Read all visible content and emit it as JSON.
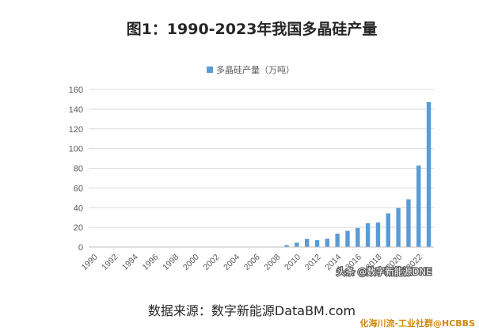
{
  "chart_data": {
    "type": "bar",
    "title": "图1：1990-2023年我国多晶硅产量",
    "series": [
      {
        "name": "多晶硅产量（万吨）",
        "values": [
          0,
          0,
          0,
          0,
          0,
          0,
          0,
          0,
          0,
          0,
          0,
          0,
          0,
          0,
          0,
          0,
          0,
          0,
          0.45,
          2.0,
          4.5,
          8.2,
          7.1,
          8.5,
          13.6,
          16.5,
          19.4,
          24.2,
          25.0,
          34.2,
          39.6,
          48.5,
          82.7,
          147.2
        ]
      }
    ],
    "categories": [
      "1990",
      "1991",
      "1992",
      "1993",
      "1994",
      "1995",
      "1996",
      "1997",
      "1998",
      "1999",
      "2000",
      "2001",
      "2002",
      "2003",
      "2004",
      "2005",
      "2006",
      "2007",
      "2008",
      "2009",
      "2010",
      "2011",
      "2012",
      "2013",
      "2014",
      "2015",
      "2016",
      "2017",
      "2018",
      "2019",
      "2020",
      "2021",
      "2022",
      "2023"
    ],
    "x_tick_labels": [
      "1990",
      "1992",
      "1994",
      "1996",
      "1998",
      "2000",
      "2002",
      "2004",
      "2006",
      "2008",
      "2010",
      "2012",
      "2014",
      "2016",
      "2018",
      "2020",
      "2022"
    ],
    "ylim": [
      0,
      160
    ],
    "y_ticks": [
      0,
      20,
      40,
      60,
      80,
      100,
      120,
      140,
      160
    ],
    "grid": true,
    "legend": "top-center",
    "bar_color": "#5b9bd5"
  },
  "source": "数据来源：数字新能源DataBM.com",
  "watermarks": {
    "toutiao": "头条 @数字新能源DNE",
    "hcbbs": "化海川流-工业社群@HCBBS"
  }
}
